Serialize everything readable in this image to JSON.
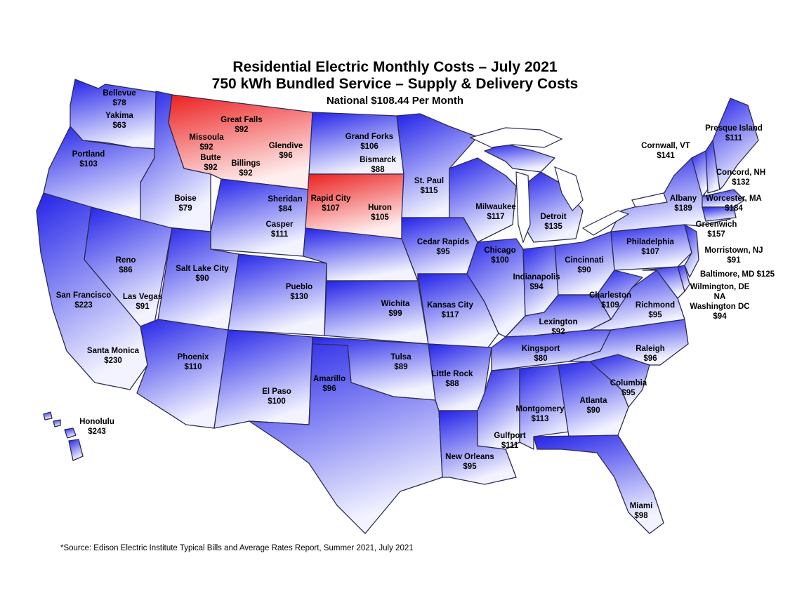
{
  "title_line1": "Residential Electric Monthly Costs – July 2021",
  "title_line2": "750 kWh Bundled Service – Supply & Delivery Costs",
  "title_line3": "National  $108.44 Per Month",
  "source": "*Source:  Edison Electric Institute Typical Bills and Average Rates Report, Summer 2021, July 2021",
  "colors": {
    "low": "#2a2ae6",
    "high": "#e82a2a",
    "light_low": "#eef0ff",
    "light_high": "#ffe8e8",
    "border": "#2b2b55",
    "lake": "#ffffff"
  },
  "cities": [
    {
      "name": "Bellevue",
      "cost": "$78"
    },
    {
      "name": "Yakima",
      "cost": "$63"
    },
    {
      "name": "Portland",
      "cost": "$103"
    },
    {
      "name": "Boise",
      "cost": "$79"
    },
    {
      "name": "Great Falls",
      "cost": "$92"
    },
    {
      "name": "Missoula",
      "cost": "$92"
    },
    {
      "name": "Butte",
      "cost": "$92"
    },
    {
      "name": "Billings",
      "cost": "$92"
    },
    {
      "name": "Glendive",
      "cost": "$96"
    },
    {
      "name": "Grand Forks",
      "cost": "$106"
    },
    {
      "name": "Bismarck",
      "cost": "$88"
    },
    {
      "name": "Rapid City",
      "cost": "$107"
    },
    {
      "name": "Huron",
      "cost": "$105"
    },
    {
      "name": "Sheridan",
      "cost": "$84"
    },
    {
      "name": "Casper",
      "cost": "$111"
    },
    {
      "name": "St. Paul",
      "cost": "$115"
    },
    {
      "name": "Milwaukee",
      "cost": "$117"
    },
    {
      "name": "Detroit",
      "cost": "$135"
    },
    {
      "name": "Cedar Rapids",
      "cost": "$95"
    },
    {
      "name": "Chicago",
      "cost": "$100"
    },
    {
      "name": "Reno",
      "cost": "$86"
    },
    {
      "name": "Salt Lake City",
      "cost": "$90"
    },
    {
      "name": "San Francisco",
      "cost": "$223"
    },
    {
      "name": "Las Vegas",
      "cost": "$91"
    },
    {
      "name": "Pueblo",
      "cost": "$130"
    },
    {
      "name": "Wichita",
      "cost": "$99"
    },
    {
      "name": "Kansas City",
      "cost": "$117"
    },
    {
      "name": "Indianapolis",
      "cost": "$94"
    },
    {
      "name": "Cincinnati",
      "cost": "$90"
    },
    {
      "name": "Philadelphia",
      "cost": "$107"
    },
    {
      "name": "Charleston",
      "cost": "$109"
    },
    {
      "name": "Richmond",
      "cost": "$95"
    },
    {
      "name": "Lexington",
      "cost": "$92"
    },
    {
      "name": "Santa Monica",
      "cost": "$230"
    },
    {
      "name": "Phoenix",
      "cost": "$110"
    },
    {
      "name": "Tulsa",
      "cost": "$89"
    },
    {
      "name": "Kingsport",
      "cost": "$80"
    },
    {
      "name": "Raleigh",
      "cost": "$96"
    },
    {
      "name": "Amarillo",
      "cost": "$96"
    },
    {
      "name": "Little Rock",
      "cost": "$88"
    },
    {
      "name": "El Paso",
      "cost": "$100"
    },
    {
      "name": "Columbia",
      "cost": "$95"
    },
    {
      "name": "Montgomery",
      "cost": "$113"
    },
    {
      "name": "Atlanta",
      "cost": "$90"
    },
    {
      "name": "Gulfport",
      "cost": "$111"
    },
    {
      "name": "New Orleans",
      "cost": "$95"
    },
    {
      "name": "Miami",
      "cost": "$98"
    },
    {
      "name": "Honolulu",
      "cost": "$243"
    },
    {
      "name": "Presque Island",
      "cost": "$111"
    },
    {
      "name": "Cornwall, VT",
      "cost": "$141"
    },
    {
      "name": "Concord, NH",
      "cost": "$132"
    },
    {
      "name": "Albany",
      "cost": "$189"
    },
    {
      "name": "Worcester, MA",
      "cost": "$184"
    },
    {
      "name": "Greenwich",
      "cost": "$157"
    },
    {
      "name": "Morristown, NJ",
      "cost": "$91"
    },
    {
      "name": "Baltimore, MD $125",
      "cost": ""
    },
    {
      "name": "Wilmington, DE",
      "cost": "NA"
    },
    {
      "name": "Washington DC",
      "cost": "$94"
    }
  ]
}
